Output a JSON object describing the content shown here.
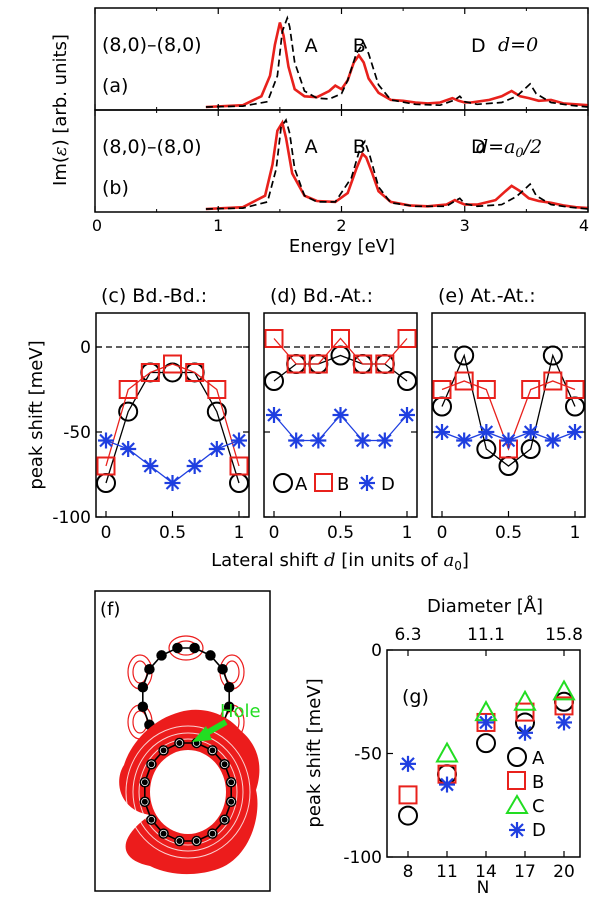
{
  "colors": {
    "red": "#e8211c",
    "blue": "#1f3fe0",
    "green": "#22dd22",
    "black": "#000000",
    "fill_red": "#ec1c1c"
  },
  "chart_data": [
    {
      "type": "line",
      "panel": "(a)",
      "system": "(8,0)–(8,0)",
      "d_label": "d=0",
      "xlabel": "Energy [eV]",
      "ylabel": "Im(ε) [arb. units]",
      "xlim": [
        0,
        4
      ],
      "xticks": [
        "0",
        "1",
        "2",
        "3",
        "4"
      ],
      "peak_labels": [
        {
          "text": "A",
          "energy": 1.62
        },
        {
          "text": "B",
          "energy": 2.01
        },
        {
          "text": "D",
          "energy": 2.97
        }
      ],
      "series": [
        {
          "style": "solid red",
          "x": [
            0.9,
            1.2,
            1.35,
            1.42,
            1.46,
            1.5,
            1.53,
            1.57,
            1.62,
            1.7,
            1.8,
            1.9,
            1.95,
            2.0,
            2.05,
            2.1,
            2.14,
            2.18,
            2.22,
            2.3,
            2.4,
            2.5,
            2.6,
            2.7,
            2.8,
            2.9,
            2.95,
            3.0,
            3.05,
            3.1,
            3.2,
            3.3,
            3.38,
            3.45,
            3.52,
            3.6,
            3.7,
            3.8,
            3.9,
            4.0
          ],
          "y": [
            0.0,
            0.02,
            0.12,
            0.35,
            0.7,
            0.95,
            0.8,
            0.45,
            0.2,
            0.12,
            0.11,
            0.18,
            0.24,
            0.2,
            0.3,
            0.5,
            0.58,
            0.5,
            0.32,
            0.16,
            0.08,
            0.07,
            0.05,
            0.04,
            0.05,
            0.1,
            0.07,
            0.05,
            0.05,
            0.06,
            0.08,
            0.12,
            0.18,
            0.12,
            0.1,
            0.07,
            0.08,
            0.04,
            0.03,
            0.02
          ]
        },
        {
          "style": "dashed black",
          "x": [
            0.9,
            1.2,
            1.4,
            1.48,
            1.52,
            1.56,
            1.58,
            1.62,
            1.7,
            1.8,
            1.9,
            2.0,
            2.05,
            2.12,
            2.18,
            2.22,
            2.3,
            2.4,
            2.6,
            2.8,
            2.92,
            2.96,
            3.0,
            3.1,
            3.3,
            3.42,
            3.5,
            3.53,
            3.58,
            3.7,
            3.85,
            4.0
          ],
          "y": [
            0.0,
            0.01,
            0.06,
            0.35,
            0.85,
            1.0,
            0.9,
            0.5,
            0.18,
            0.1,
            0.09,
            0.15,
            0.3,
            0.6,
            0.72,
            0.6,
            0.25,
            0.08,
            0.03,
            0.02,
            0.08,
            0.12,
            0.06,
            0.03,
            0.05,
            0.12,
            0.22,
            0.26,
            0.15,
            0.05,
            0.02,
            0.0
          ]
        }
      ]
    },
    {
      "type": "line",
      "panel": "(b)",
      "system": "(8,0)–(8,0)",
      "d_label": "d=a0/2",
      "xlim": [
        0,
        4
      ],
      "peak_labels": [
        {
          "text": "A",
          "energy": 1.62
        },
        {
          "text": "B",
          "energy": 2.01
        },
        {
          "text": "D",
          "energy": 2.97
        }
      ],
      "series": [
        {
          "style": "solid red",
          "x": [
            0.9,
            1.2,
            1.38,
            1.44,
            1.48,
            1.52,
            1.55,
            1.6,
            1.7,
            1.8,
            1.95,
            2.05,
            2.12,
            2.17,
            2.2,
            2.25,
            2.3,
            2.4,
            2.55,
            2.7,
            2.85,
            2.92,
            2.95,
            3.0,
            3.1,
            3.25,
            3.33,
            3.38,
            3.45,
            3.52,
            3.6,
            3.7,
            3.8,
            3.9,
            4.0
          ],
          "y": [
            0.0,
            0.02,
            0.15,
            0.5,
            0.88,
            0.97,
            0.8,
            0.4,
            0.15,
            0.09,
            0.08,
            0.18,
            0.45,
            0.62,
            0.58,
            0.4,
            0.2,
            0.08,
            0.04,
            0.03,
            0.05,
            0.1,
            0.08,
            0.05,
            0.05,
            0.1,
            0.2,
            0.26,
            0.2,
            0.12,
            0.09,
            0.07,
            0.04,
            0.02,
            0.01
          ]
        },
        {
          "style": "dashed black",
          "x": [
            0.9,
            1.2,
            1.4,
            1.47,
            1.51,
            1.55,
            1.58,
            1.62,
            1.7,
            1.8,
            1.95,
            2.08,
            2.15,
            2.19,
            2.23,
            2.3,
            2.4,
            2.6,
            2.85,
            2.92,
            2.96,
            3.0,
            3.1,
            3.3,
            3.42,
            3.5,
            3.53,
            3.58,
            3.7,
            3.85,
            4.0
          ],
          "y": [
            0.0,
            0.01,
            0.08,
            0.45,
            0.92,
            1.0,
            0.85,
            0.45,
            0.15,
            0.08,
            0.08,
            0.35,
            0.68,
            0.76,
            0.6,
            0.25,
            0.07,
            0.03,
            0.03,
            0.09,
            0.12,
            0.06,
            0.03,
            0.05,
            0.14,
            0.24,
            0.28,
            0.15,
            0.05,
            0.02,
            0.0
          ]
        }
      ]
    },
    {
      "type": "scatter",
      "panel": "(c)",
      "title": "(c) Bd.-Bd.:",
      "ylabel": "peak shift [meV]",
      "ylim": [
        -100,
        20
      ],
      "yticks": [
        "0",
        "-50",
        "-100"
      ],
      "xticks": [
        "0",
        "0.5",
        "1"
      ],
      "x": [
        0,
        0.1667,
        0.3333,
        0.5,
        0.6667,
        0.8333,
        1
      ],
      "series": [
        {
          "name": "A",
          "marker": "circle",
          "color": "#000000",
          "values": [
            -80,
            -38,
            -15,
            -15,
            -15,
            -38,
            -80
          ]
        },
        {
          "name": "B",
          "marker": "square",
          "color": "#e8211c",
          "values": [
            -70,
            -25,
            -15,
            -10,
            -15,
            -25,
            -70
          ]
        },
        {
          "name": "D",
          "marker": "asterisk",
          "color": "#1f3fe0",
          "values": [
            -55,
            -60,
            -70,
            -80,
            -70,
            -60,
            -55
          ]
        }
      ]
    },
    {
      "type": "scatter",
      "panel": "(d)",
      "title": "(d) Bd.-At.:",
      "ylim": [
        -100,
        20
      ],
      "xticks": [
        "0",
        "0.5",
        "1"
      ],
      "x": [
        0,
        0.1667,
        0.3333,
        0.5,
        0.6667,
        0.8333,
        1
      ],
      "legend": [
        "A",
        "B",
        "D"
      ],
      "series": [
        {
          "name": "A",
          "marker": "circle",
          "color": "#000000",
          "values": [
            -20,
            -10,
            -10,
            -5,
            -10,
            -10,
            -20
          ]
        },
        {
          "name": "B",
          "marker": "square",
          "color": "#e8211c",
          "values": [
            5,
            -10,
            -10,
            5,
            -10,
            -10,
            5
          ]
        },
        {
          "name": "D",
          "marker": "asterisk",
          "color": "#1f3fe0",
          "values": [
            -40,
            -55,
            -55,
            -40,
            -55,
            -55,
            -40
          ]
        }
      ]
    },
    {
      "type": "scatter",
      "panel": "(e)",
      "title": "(e) At.-At.:",
      "ylim": [
        -100,
        20
      ],
      "xticks": [
        "0",
        "0.5",
        "1"
      ],
      "x": [
        0,
        0.1667,
        0.3333,
        0.5,
        0.6667,
        0.8333,
        1
      ],
      "series": [
        {
          "name": "A",
          "marker": "circle",
          "color": "#000000",
          "values": [
            -35,
            -5,
            -60,
            -70,
            -60,
            -5,
            -35
          ]
        },
        {
          "name": "B",
          "marker": "square",
          "color": "#e8211c",
          "values": [
            -25,
            -20,
            -25,
            -60,
            -25,
            -20,
            -25
          ]
        },
        {
          "name": "D",
          "marker": "asterisk",
          "color": "#1f3fe0",
          "values": [
            -50,
            -55,
            -50,
            -55,
            -50,
            -55,
            -50
          ]
        }
      ]
    },
    {
      "type": "scatter",
      "panel": "(g)",
      "xlabel": "N",
      "ylabel": "peak shift [meV]",
      "top_xlabel": "Diameter [Å]",
      "top_xticks": [
        "6.3",
        "11.1",
        "15.8"
      ],
      "ylim": [
        -100,
        0
      ],
      "yticks": [
        "0",
        "-50",
        "-100"
      ],
      "x": [
        8,
        11,
        14,
        17,
        20
      ],
      "series": [
        {
          "name": "A",
          "marker": "circle",
          "color": "#000000",
          "values": [
            -80,
            -60,
            -45,
            -35,
            -25
          ]
        },
        {
          "name": "B",
          "marker": "square",
          "color": "#e8211c",
          "values": [
            -70,
            -60,
            -35,
            -30,
            -27
          ]
        },
        {
          "name": "C",
          "marker": "triangle",
          "color": "#22dd22",
          "values": [
            null,
            -50,
            -30,
            -25,
            -20
          ]
        },
        {
          "name": "D",
          "marker": "asterisk",
          "color": "#1f3fe0",
          "values": [
            -55,
            -65,
            -35,
            -40,
            -35
          ]
        }
      ]
    }
  ],
  "shared_xlabel": "Lateral shift d [in units of a0]",
  "panel_f": {
    "label": "(f)",
    "annotation": "Hole"
  }
}
